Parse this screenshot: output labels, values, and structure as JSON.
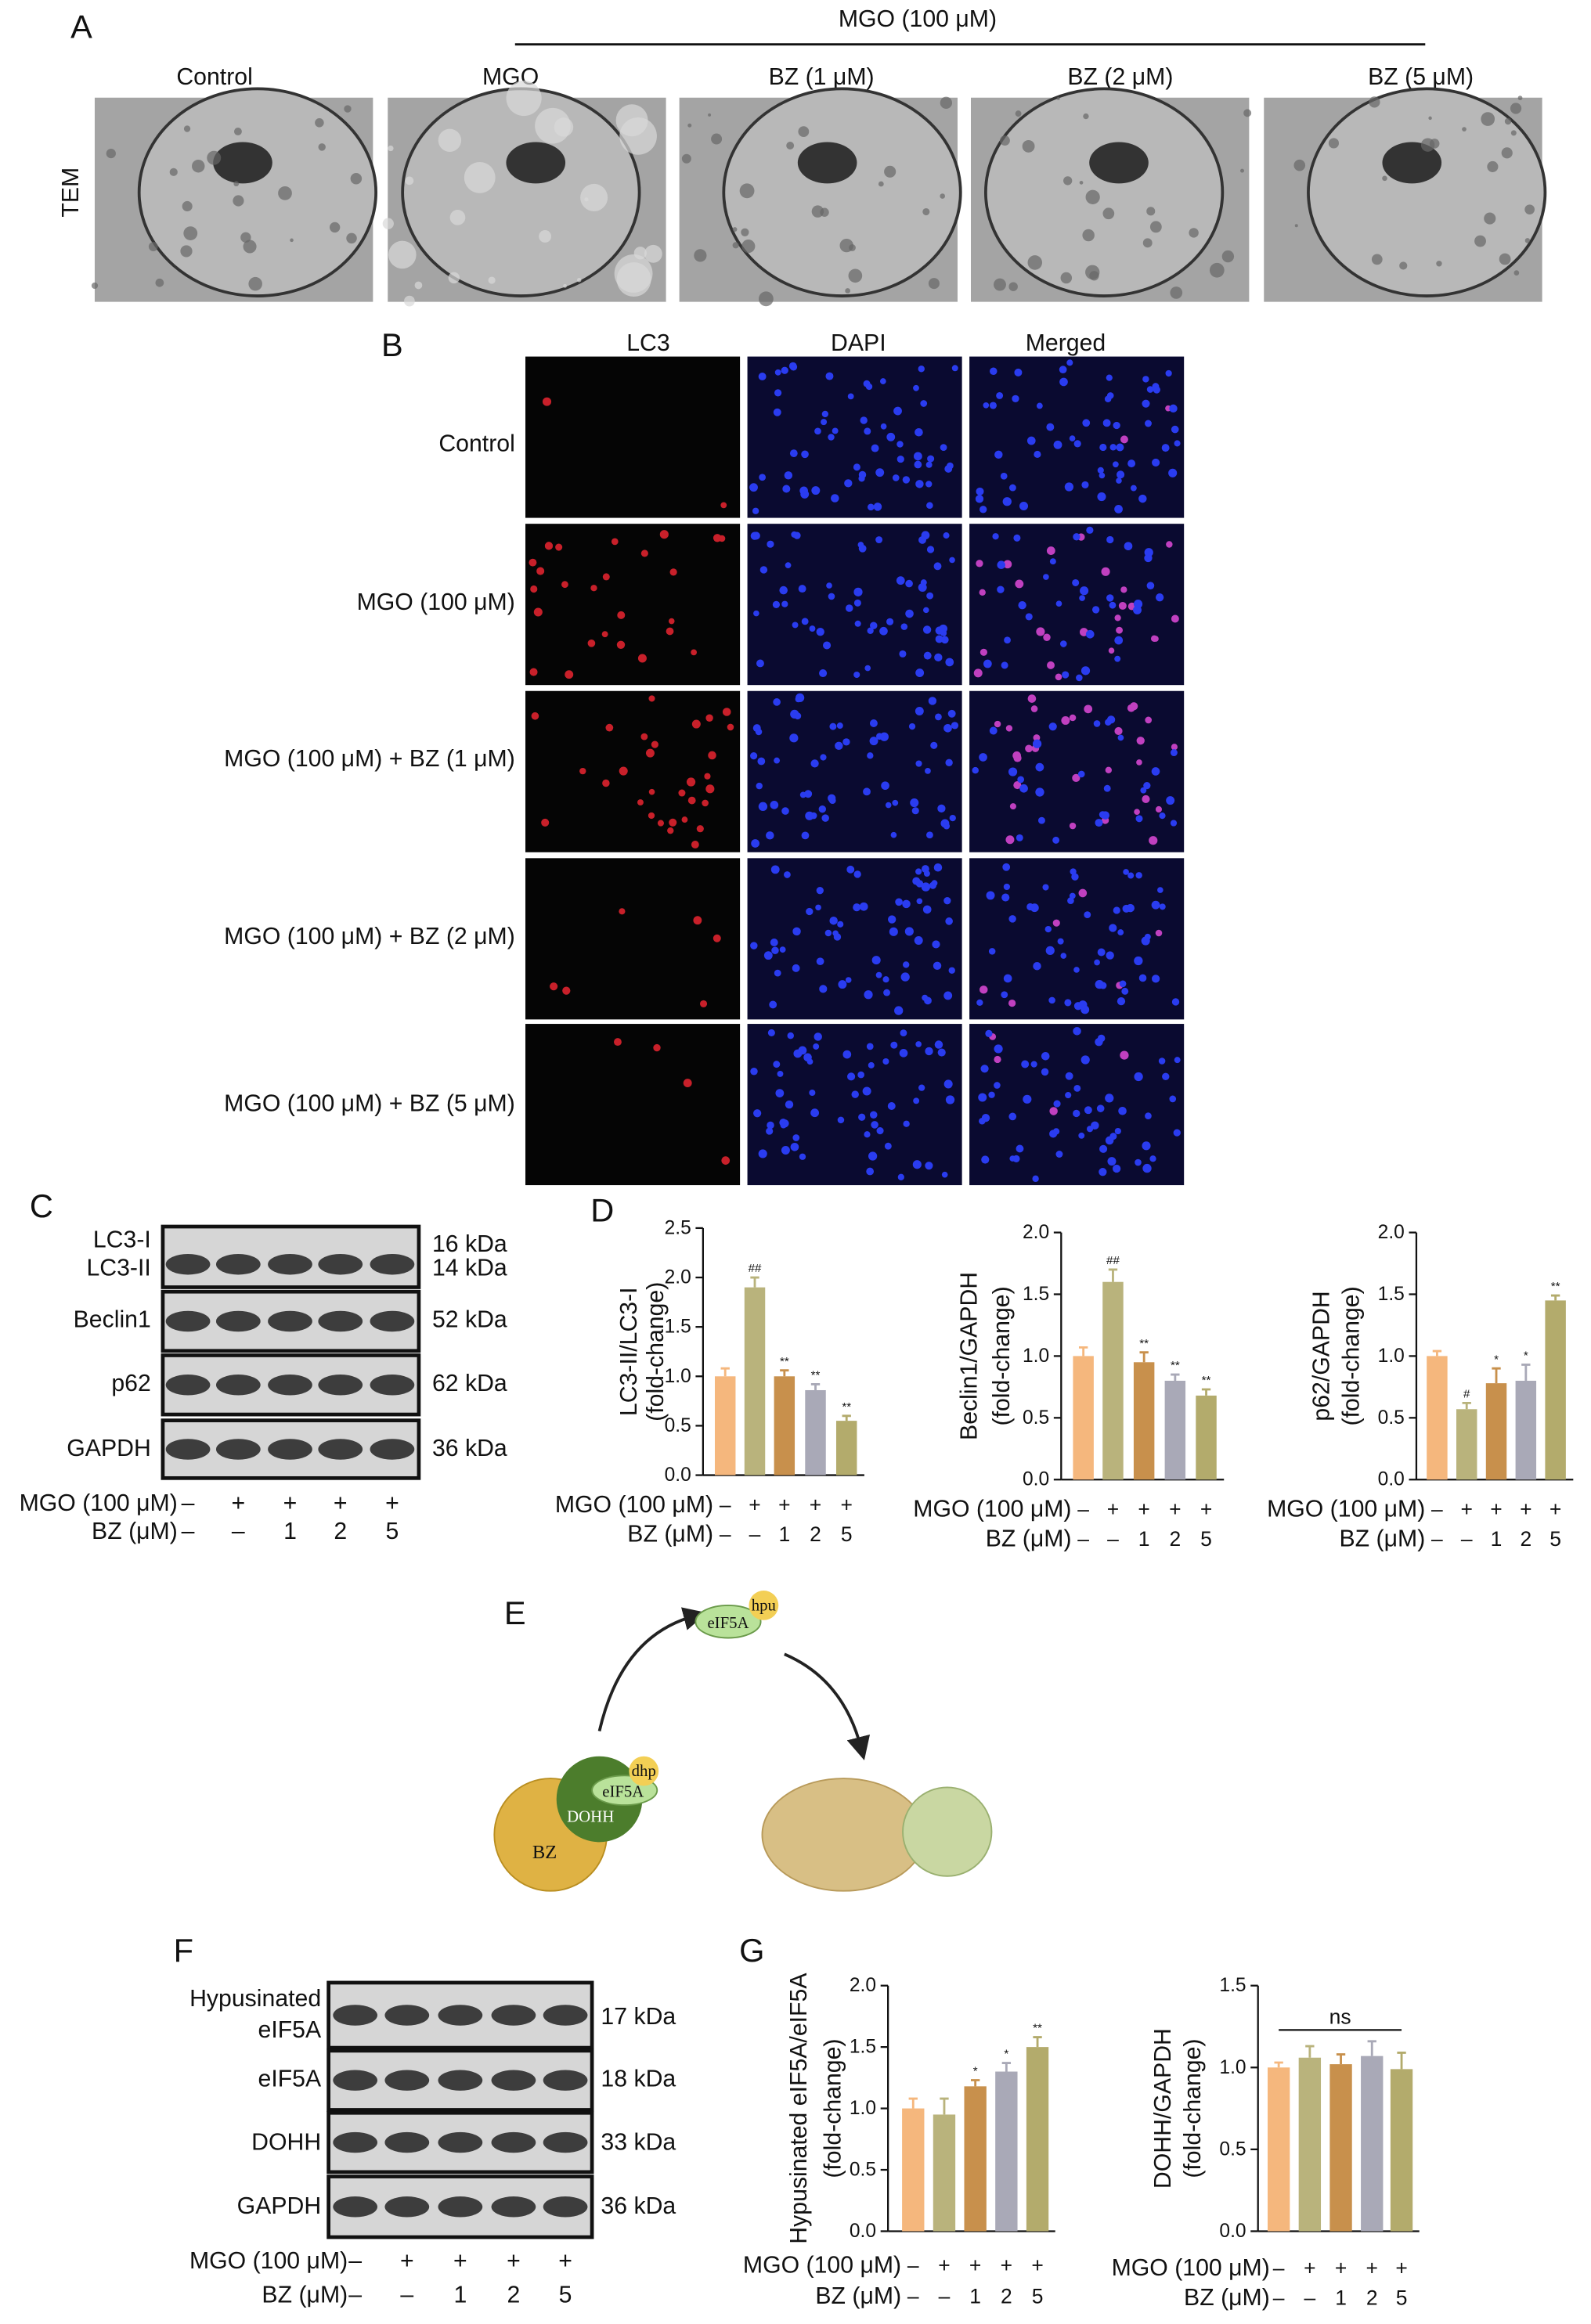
{
  "panel_labels": [
    "A",
    "B",
    "C",
    "D",
    "E",
    "F",
    "G"
  ],
  "tem": {
    "group_label": "MGO (100 μM)",
    "row_label": "TEM",
    "columns": [
      "Control",
      "MGO",
      "BZ (1 μM)",
      "BZ (2 μM)",
      "BZ (5 μM)"
    ]
  },
  "fluorescence": {
    "columns": [
      "LC3",
      "DAPI",
      "Merged"
    ],
    "rows": [
      "Control",
      "MGO (100 μM)",
      "MGO (100 μM) + BZ (1 μM)",
      "MGO (100 μM) + BZ (2 μM)",
      "MGO (100 μM) + BZ (5 μM)"
    ]
  },
  "blot_c": {
    "rows": [
      {
        "labels": [
          "LC3-I",
          "LC3-II"
        ],
        "sizes": [
          "16 kDa",
          "14 kDa"
        ]
      },
      {
        "labels": [
          "Beclin1"
        ],
        "sizes": [
          "52 kDa"
        ]
      },
      {
        "labels": [
          "p62"
        ],
        "sizes": [
          "62 kDa"
        ]
      },
      {
        "labels": [
          "GAPDH"
        ],
        "sizes": [
          "36 kDa"
        ]
      }
    ],
    "conditions": [
      {
        "label": "MGO (100 μM)",
        "values": [
          "–",
          "+",
          "+",
          "+",
          "+"
        ]
      },
      {
        "label": "BZ (μM)",
        "values": [
          "–",
          "–",
          "1",
          "2",
          "5"
        ]
      }
    ]
  },
  "diagram": {
    "nodes": [
      "eIF5A",
      "hpu",
      "eIF5A",
      "dhp",
      "DOHH",
      "BZ"
    ]
  },
  "blot_f": {
    "rows": [
      {
        "labels": [
          "Hypusinated",
          "eIF5A"
        ],
        "sizes": [
          "17 kDa"
        ]
      },
      {
        "labels": [
          "eIF5A"
        ],
        "sizes": [
          "18 kDa"
        ]
      },
      {
        "labels": [
          "DOHH"
        ],
        "sizes": [
          "33 kDa"
        ]
      },
      {
        "labels": [
          "GAPDH"
        ],
        "sizes": [
          "36 kDa"
        ]
      }
    ],
    "conditions": [
      {
        "label": "MGO (100 μM)",
        "values": [
          "–",
          "+",
          "+",
          "+",
          "+"
        ]
      },
      {
        "label": "BZ (μM)",
        "values": [
          "–",
          "–",
          "1",
          "2",
          "5"
        ]
      }
    ]
  },
  "chart_data": [
    {
      "type": "bar",
      "ylabel": [
        "LC3-II/LC3-I",
        "(fold-change)"
      ],
      "categories": [
        null,
        null,
        null,
        null,
        null
      ],
      "values": [
        1.0,
        1.9,
        1.0,
        0.86,
        0.55
      ],
      "errors": [
        0.08,
        0.1,
        0.06,
        0.06,
        0.05
      ],
      "significance": [
        null,
        "##",
        "**",
        "**",
        "**"
      ],
      "colors": [
        "#f5b77d",
        "#b9b37c",
        "#c8904c",
        "#a9a9b7",
        "#b3ab6c"
      ],
      "ylim": [
        0,
        2.5
      ],
      "yticks": [
        {
          "value": 0,
          "label": "0.0"
        },
        0.5,
        {
          "value": 1,
          "label": "1.0"
        },
        1.5,
        {
          "value": 2,
          "label": "2.0"
        },
        2.5
      ],
      "conditions": [
        {
          "label": "MGO (100 μM)",
          "values": [
            "–",
            "+",
            "+",
            "+",
            "+"
          ]
        },
        {
          "label": "BZ (μM)",
          "values": [
            "–",
            "–",
            "1",
            "2",
            "5"
          ]
        }
      ]
    },
    {
      "type": "bar",
      "ylabel": [
        "Beclin1/GAPDH",
        "(fold-change)"
      ],
      "categories": [
        null,
        null,
        null,
        null,
        null
      ],
      "values": [
        1.0,
        1.6,
        0.95,
        0.8,
        0.68
      ],
      "errors": [
        0.07,
        0.1,
        0.08,
        0.05,
        0.05
      ],
      "significance": [
        null,
        "##",
        "**",
        "**",
        "**"
      ],
      "colors": [
        "#f5b77d",
        "#b9b37c",
        "#c8904c",
        "#a9a9b7",
        "#b3ab6c"
      ],
      "ylim": [
        0,
        2
      ],
      "yticks": [
        {
          "value": 0,
          "label": "0.0"
        },
        0.5,
        {
          "value": 1,
          "label": "1.0"
        },
        1.5,
        {
          "value": 2,
          "label": "2.0"
        }
      ],
      "conditions": [
        {
          "label": "MGO (100 μM)",
          "values": [
            "–",
            "+",
            "+",
            "+",
            "+"
          ]
        },
        {
          "label": "BZ (μM)",
          "values": [
            "–",
            "–",
            "1",
            "2",
            "5"
          ]
        }
      ]
    },
    {
      "type": "bar",
      "ylabel": [
        "p62/GAPDH",
        "(fold-change)"
      ],
      "categories": [
        null,
        null,
        null,
        null,
        null
      ],
      "values": [
        1.0,
        0.57,
        0.78,
        0.8,
        1.45
      ],
      "errors": [
        0.04,
        0.05,
        0.12,
        0.13,
        0.04
      ],
      "significance": [
        null,
        "#",
        "*",
        "*",
        "**"
      ],
      "colors": [
        "#f5b77d",
        "#b9b37c",
        "#c8904c",
        "#a9a9b7",
        "#b3ab6c"
      ],
      "ylim": [
        0,
        2
      ],
      "yticks": [
        {
          "value": 0,
          "label": "0.0"
        },
        0.5,
        {
          "value": 1,
          "label": "1.0"
        },
        1.5,
        {
          "value": 2,
          "label": "2.0"
        }
      ],
      "conditions": [
        {
          "label": "MGO (100 μM)",
          "values": [
            "–",
            "+",
            "+",
            "+",
            "+"
          ]
        },
        {
          "label": "BZ (μM)",
          "values": [
            "–",
            "–",
            "1",
            "2",
            "5"
          ]
        }
      ]
    },
    {
      "type": "bar",
      "ylabel": [
        "Hypusinated eIF5A/eIF5A",
        "(fold-change)"
      ],
      "categories": [
        null,
        null,
        null,
        null,
        null
      ],
      "values": [
        1.0,
        0.95,
        1.18,
        1.3,
        1.5
      ],
      "errors": [
        0.08,
        0.13,
        0.05,
        0.07,
        0.08
      ],
      "significance": [
        null,
        null,
        "*",
        "*",
        "**"
      ],
      "colors": [
        "#f5b77d",
        "#b9b37c",
        "#c8904c",
        "#a9a9b7",
        "#b3ab6c"
      ],
      "ylim": [
        0,
        2
      ],
      "yticks": [
        {
          "value": 0,
          "label": "0.0"
        },
        0.5,
        {
          "value": 1,
          "label": "1.0"
        },
        1.5,
        {
          "value": 2,
          "label": "2.0"
        }
      ],
      "conditions": [
        {
          "label": "MGO (100 μM)",
          "values": [
            "–",
            "+",
            "+",
            "+",
            "+"
          ]
        },
        {
          "label": "BZ (μM)",
          "values": [
            "–",
            "–",
            "1",
            "2",
            "5"
          ]
        }
      ]
    },
    {
      "type": "bar",
      "ylabel": [
        "DOHH/GAPDH",
        "(fold-change)"
      ],
      "categories": [
        null,
        null,
        null,
        null,
        null
      ],
      "values": [
        1.0,
        1.06,
        1.02,
        1.07,
        0.99
      ],
      "errors": [
        0.03,
        0.07,
        0.06,
        0.09,
        0.1
      ],
      "annotation": "ns",
      "colors": [
        "#f5b77d",
        "#b9b37c",
        "#c8904c",
        "#a9a9b7",
        "#b3ab6c"
      ],
      "ylim": [
        0,
        1.5
      ],
      "yticks": [
        {
          "value": 0,
          "label": "0.0"
        },
        0.5,
        {
          "value": 1,
          "label": "1.0"
        },
        1.5
      ],
      "conditions": [
        {
          "label": "MGO (100 μM)",
          "values": [
            "–",
            "+",
            "+",
            "+",
            "+"
          ]
        },
        {
          "label": "BZ (μM)",
          "values": [
            "–",
            "–",
            "1",
            "2",
            "5"
          ]
        }
      ]
    }
  ]
}
